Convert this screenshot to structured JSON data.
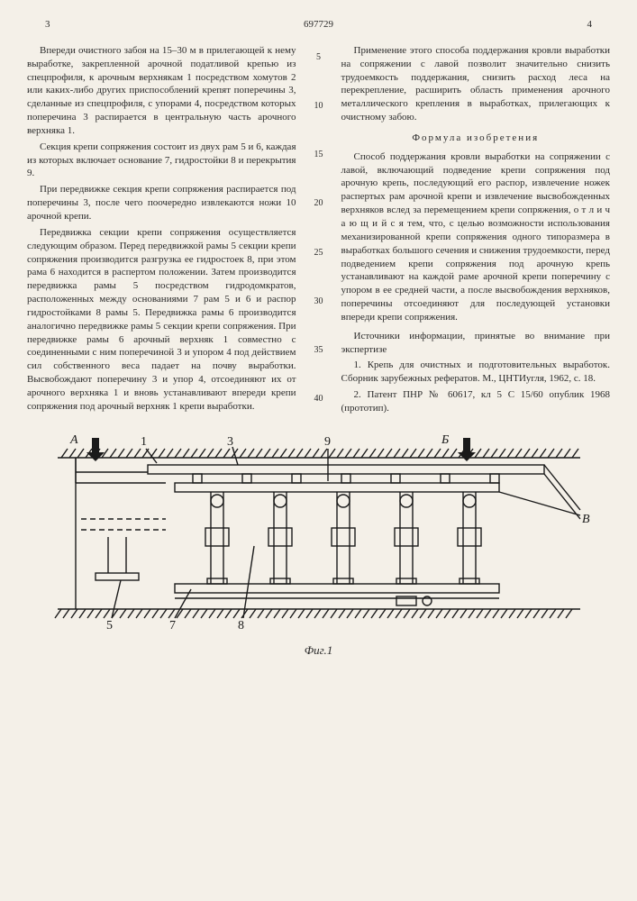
{
  "header": {
    "page_left": "3",
    "patent_no": "697729",
    "page_right": "4"
  },
  "line_numbers": [
    "5",
    "10",
    "15",
    "20",
    "25",
    "30",
    "35",
    "40"
  ],
  "left_col": [
    "Впереди очистного забоя на 15–30 м в прилегающей к нему выработке, закрепленной арочной податливой крепью из спецпрофиля, к арочным верхнякам 1 посредством хомутов 2 или каких-либо других приспособлений крепят поперечины 3, сделанные из спецпрофиля, с упорами 4, посредством которых поперечина 3 распирается в центральную часть арочного верхняка 1.",
    "Секция крепи сопряжения состоит из двух рам 5 и 6, каждая из которых включает основание 7, гидростойки 8 и перекрытия 9.",
    "При передвижке секция крепи сопряжения распирается под поперечины 3, после чего поочередно извлекаются ножи 10 арочной крепи.",
    "Передвижка секции крепи сопряжения осуществляется следующим образом. Перед передвижкой рамы 5 секции крепи сопряжения производится разгрузка ее гидростоек 8, при этом рама 6 находится в распертом положении. Затем производится передвижка рамы 5 посредством гидродомкратов, расположенных между основаниями 7 рам 5 и 6 и распор гидростойками 8 рамы 5. Передвижка рамы 6 производится аналогично передвижке рамы 5 секции крепи сопряжения. При передвижке рамы 6 арочный верхняк 1 совместно с соединенными с ним поперечиной 3 и упором 4 под действием сил собственного веса падает на почву выработки. Высвобождают поперечину 3 и упор 4, отсоединяют их от арочного верхняка 1 и вновь устанавливают впереди крепи сопряжения под арочный верхняк 1 крепи выработки."
  ],
  "right_col": {
    "intro": "Применение этого способа поддержания кровли выработки на сопряжении с лавой позволит значительно снизить трудоемкость поддержания, снизить расход леса на перекрепление, расширить область применения арочного металлического крепления в выработках, прилегающих к очистному забою.",
    "formula_title": "Формула изобретения",
    "formula": "Способ поддержания кровли выработки на сопряжении с лавой, включающий подведение крепи сопряжения под арочную крепь, последующий его распор, извлечение ножек распертых рам арочной крепи и извлечение высвобожденных верхняков вслед за перемещением крепи сопряжения, о т л и ч а ю щ и й с я тем, что, с целью возможности использования механизированной крепи сопряжения одного типоразмера в выработках большого сечения и снижения трудоемкости, перед подведением крепи сопряжения под арочную крепь устанавливают на каждой раме арочной крепи поперечину с упором в ее средней части, а после высвобождения верхняков, поперечины отсоединяют для последующей установки впереди крепи сопряжения.",
    "sources_title": "Источники информации, принятые во внимание при экспертизе",
    "src1": "1. Крепь для очистных и подготовительных выработок. Сборник зарубежных рефератов. М., ЦНТИугля, 1962, с. 18.",
    "src2": "2. Патент ПНР № 60617, кл 5 С 15/60 опублик 1968 (прототип)."
  },
  "figure": {
    "caption": "Фиг.1",
    "labels": {
      "A": "А",
      "B": "Б",
      "V": "В",
      "n1": "1",
      "n3": "3",
      "n5": "5",
      "n7": "7",
      "n8": "8",
      "n9": "9"
    },
    "stroke": "#1a1a1a",
    "hatch_gap": 9
  }
}
